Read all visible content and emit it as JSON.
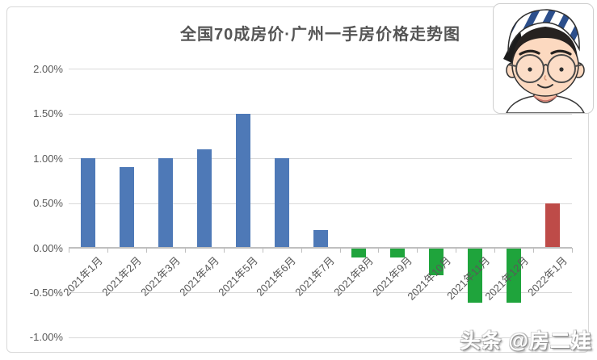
{
  "page": {
    "background": "#ffffff",
    "card_border_color": "#d9d9d9"
  },
  "chart_data": {
    "type": "bar",
    "title": "全国70成房价·广州一手房价格走势图",
    "categories": [
      "2021年1月",
      "2021年2月",
      "2021年3月",
      "2021年4月",
      "2021年5月",
      "2021年6月",
      "2021年7月",
      "2021年8月",
      "2021年9月",
      "2021年10月",
      "2021年11月",
      "2021年12月",
      "2022年1月"
    ],
    "values": [
      1.0,
      0.9,
      1.0,
      1.1,
      1.5,
      1.0,
      0.2,
      -0.1,
      -0.1,
      -0.3,
      -0.6,
      -0.6,
      0.5
    ],
    "unit": "%",
    "bar_colors": [
      "#4e79b7",
      "#4e79b7",
      "#4e79b7",
      "#4e79b7",
      "#4e79b7",
      "#4e79b7",
      "#4e79b7",
      "#1fa43c",
      "#1fa43c",
      "#1fa43c",
      "#1fa43c",
      "#1fa43c",
      "#be4b48"
    ],
    "y_tick_labels": [
      "2.00%",
      "1.50%",
      "1.00%",
      "0.50%",
      "0.00%",
      "-0.50%",
      "-1.00%"
    ],
    "y_tick_values": [
      2.0,
      1.5,
      1.0,
      0.5,
      0.0,
      -0.5,
      -1.0
    ],
    "ylim": [
      -1.0,
      2.0
    ],
    "xlabel": "",
    "ylabel": "",
    "grid": true,
    "legend": false,
    "x_label_rotation_deg": -45,
    "colors": {
      "positive_2021": "#4e79b7",
      "negative": "#1fa43c",
      "positive_2022": "#be4b48",
      "gridline": "#d9d9d9",
      "axis": "#bfbfbf",
      "text": "#595959",
      "title_text": "#555555"
    }
  },
  "watermark": {
    "text": "头条 @房二娃"
  },
  "decorations": {
    "avatar": "cartoon-boy-striped-cap-round-glasses"
  }
}
